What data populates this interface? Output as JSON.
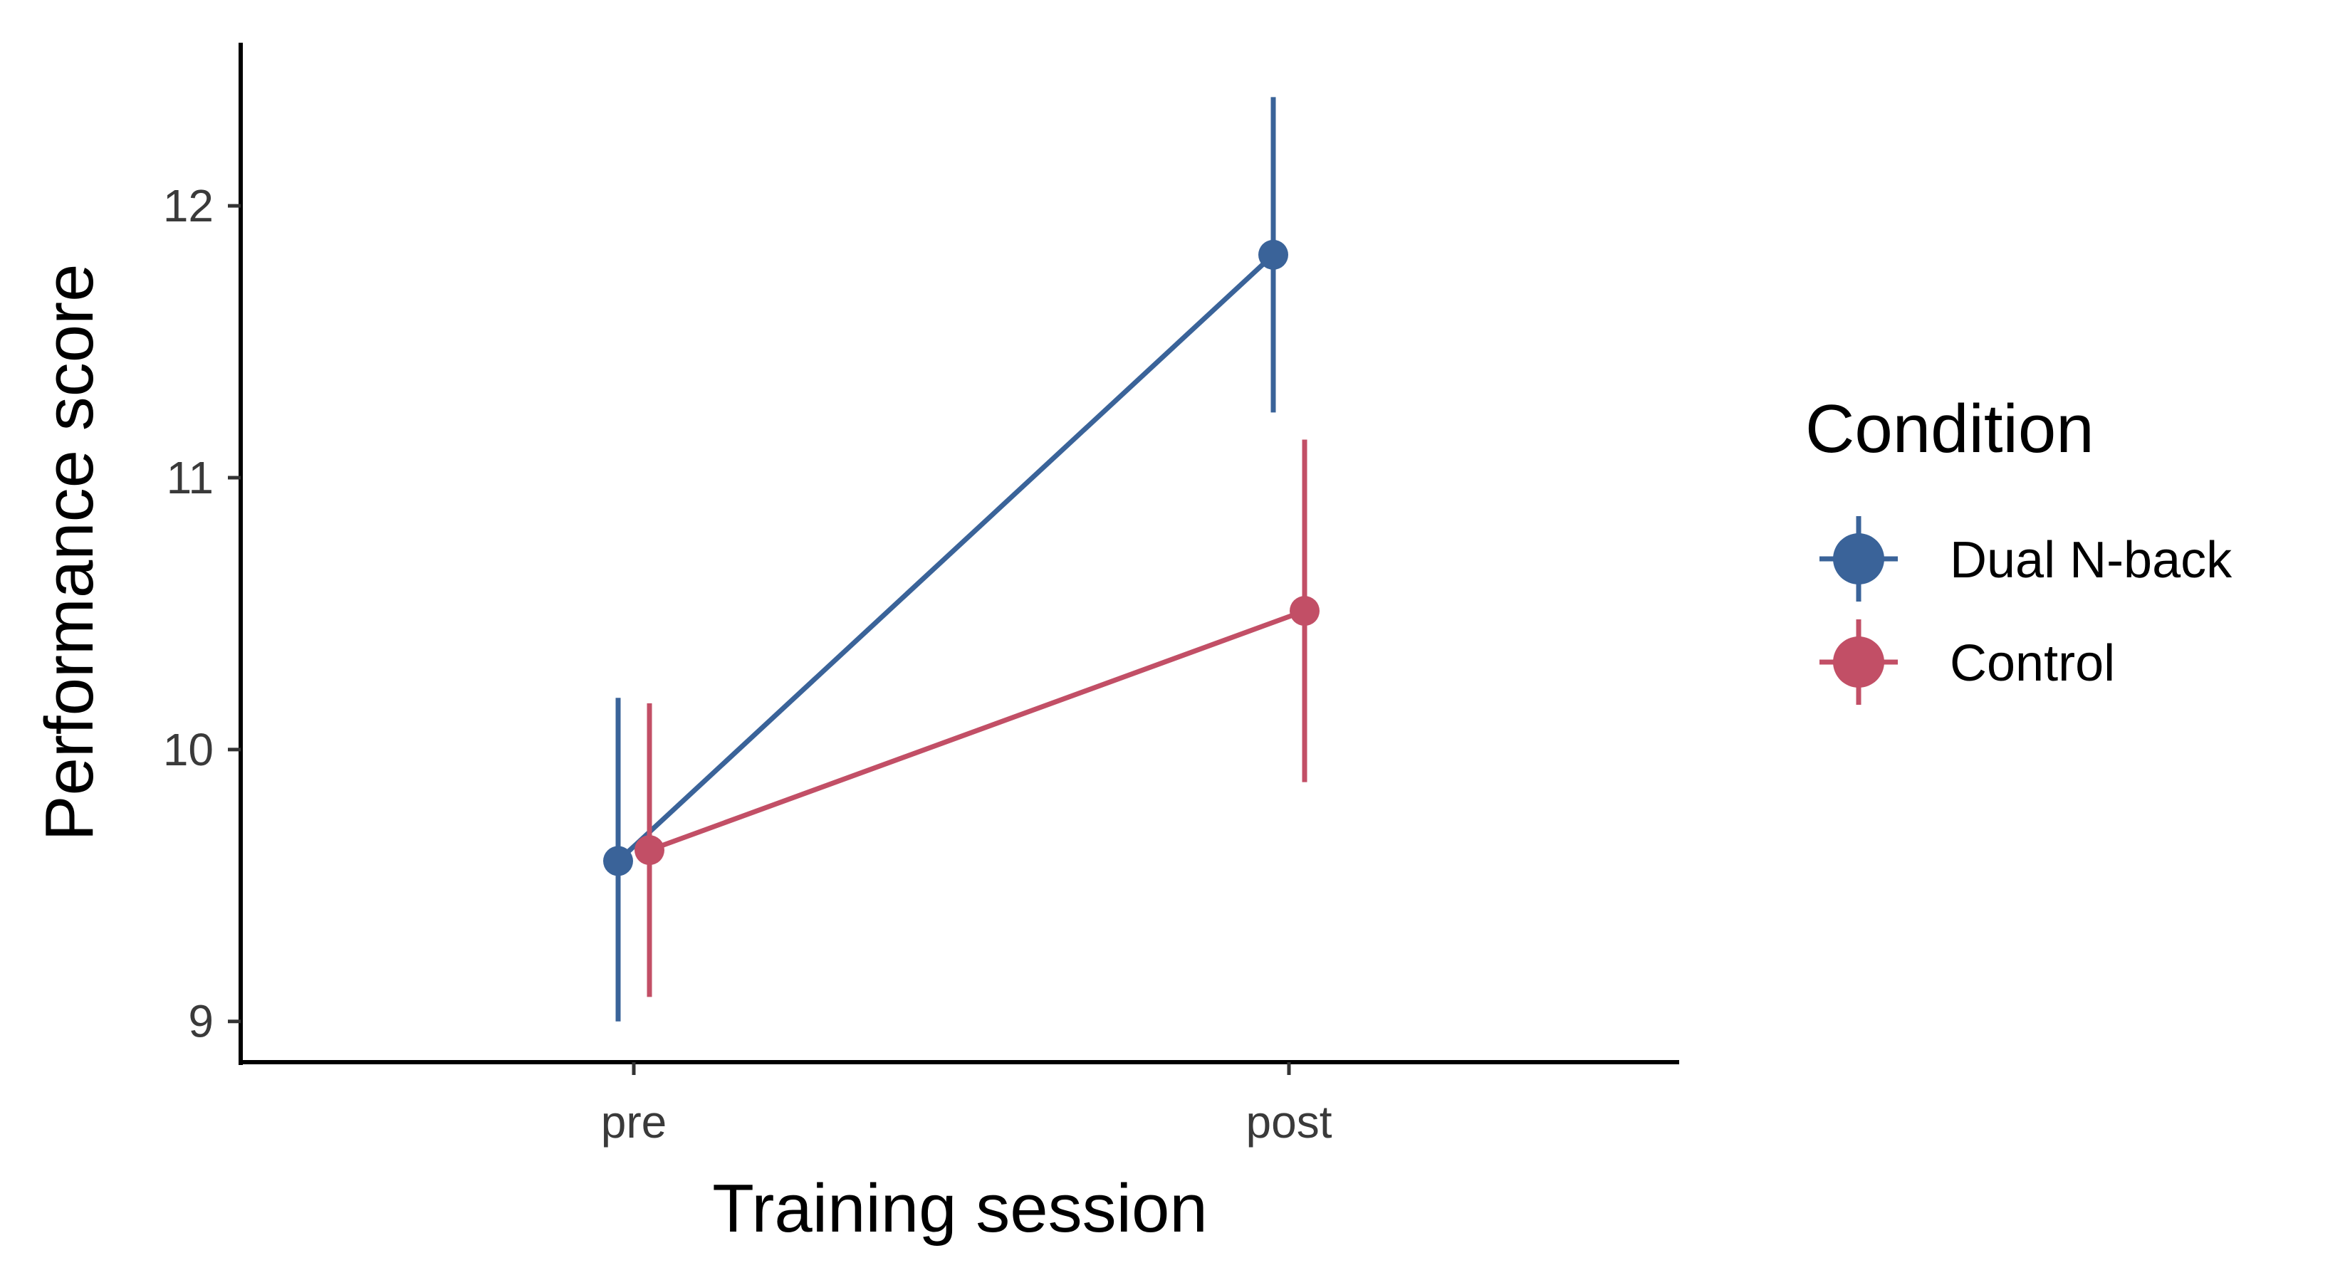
{
  "chart_data": {
    "type": "line",
    "xlabel": "Training session",
    "ylabel": "Performance score",
    "categories": [
      "pre",
      "post"
    ],
    "ylim": [
      8.85,
      12.6
    ],
    "yticks": [
      9,
      10,
      11,
      12
    ],
    "grid": false,
    "legend": {
      "title": "Condition",
      "placement": "right"
    },
    "series": [
      {
        "name": "Dual N-back",
        "color": "#3a6399",
        "values": [
          9.59,
          11.82
        ],
        "lower": [
          9.0,
          11.24
        ],
        "upper": [
          10.19,
          12.4
        ]
      },
      {
        "name": "Control",
        "color": "#c24f66",
        "values": [
          9.63,
          10.51
        ],
        "lower": [
          9.09,
          9.88
        ],
        "upper": [
          10.17,
          11.14
        ]
      }
    ]
  }
}
